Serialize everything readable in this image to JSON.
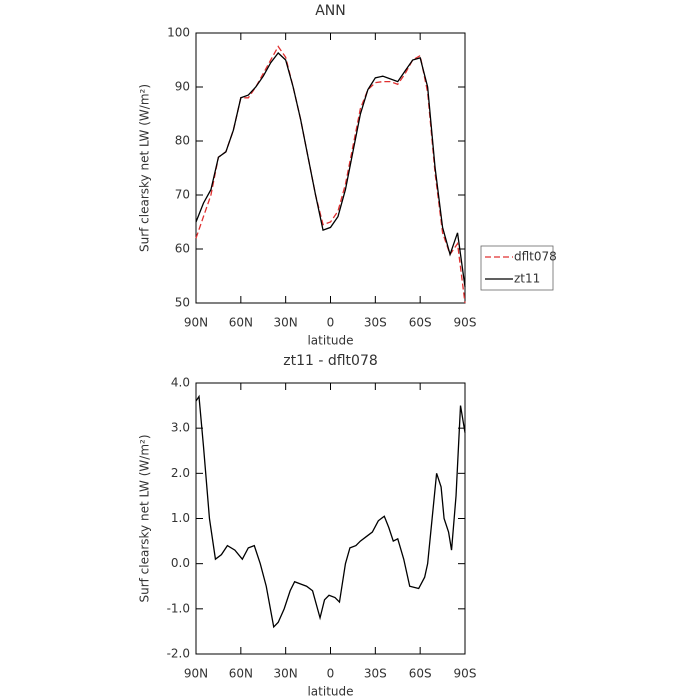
{
  "chart_data": [
    {
      "type": "line",
      "title": "ANN",
      "ylabel": "Surf clearsky net LW (W/m²)",
      "xlabel": "latitude",
      "x": [
        90,
        85,
        80,
        75,
        70,
        65,
        60,
        55,
        50,
        45,
        40,
        35,
        30,
        25,
        20,
        15,
        10,
        5,
        0,
        -5,
        -10,
        -15,
        -20,
        -25,
        -30,
        -35,
        -40,
        -45,
        -50,
        -55,
        -60,
        -65,
        -70,
        -75,
        -80,
        -85,
        -90
      ],
      "series": [
        {
          "name": "dflt078",
          "color": "#e03030",
          "dash": true,
          "values": [
            62,
            66,
            70,
            77,
            78,
            82,
            88,
            88,
            90,
            92.5,
            95,
            97.5,
            95.5,
            90,
            84,
            77,
            70,
            64.5,
            65,
            67,
            72,
            79,
            86,
            89.5,
            90.8,
            91,
            91,
            90.5,
            92.5,
            95,
            95.8,
            89,
            74,
            63,
            59,
            61,
            50
          ]
        },
        {
          "name": "zt11",
          "color": "#000000",
          "dash": false,
          "values": [
            65,
            68.5,
            71,
            77,
            78,
            82,
            88,
            88.5,
            90,
            92,
            94.5,
            96.3,
            95,
            90,
            84,
            77,
            70,
            63.5,
            64,
            66,
            71,
            78,
            85,
            89.5,
            91.7,
            92,
            91.5,
            91,
            93,
            95,
            95.4,
            90,
            75,
            64,
            59,
            63,
            53
          ]
        }
      ],
      "xlim": [
        90,
        -90
      ],
      "xticks": [
        {
          "value": 90,
          "label": "90N"
        },
        {
          "value": 60,
          "label": "60N"
        },
        {
          "value": 30,
          "label": "30N"
        },
        0,
        {
          "value": -30,
          "label": "30S"
        },
        {
          "value": -60,
          "label": "60S"
        },
        {
          "value": -90,
          "label": "90S"
        }
      ],
      "ylim": [
        50,
        100
      ],
      "yticks": [
        50,
        60,
        70,
        80,
        90,
        100
      ],
      "legend": "right"
    },
    {
      "type": "line",
      "title": "zt11 - dflt078",
      "ylabel": "Surf clearsky net LW (W/m²)",
      "xlabel": "latitude",
      "x": [
        90,
        88,
        85,
        81,
        77,
        73,
        69,
        64,
        59,
        55,
        51,
        47,
        43,
        38,
        35,
        31,
        27,
        24,
        20,
        16,
        12,
        7,
        4,
        1,
        -3,
        -6,
        -10,
        -13,
        -17,
        -20,
        -24,
        -28,
        -32,
        -36,
        -39,
        -42,
        -45,
        -49,
        -53,
        -59,
        -63,
        -65,
        -68,
        -71,
        -74,
        -76,
        -79,
        -81,
        -84,
        -87,
        -90
      ],
      "series": [
        {
          "name": "zt11 - dflt078",
          "color": "#000000",
          "dash": false,
          "values": [
            3.6,
            3.7,
            2.6,
            1.0,
            0.1,
            0.2,
            0.4,
            0.3,
            0.1,
            0.35,
            0.4,
            0.0,
            -0.5,
            -1.4,
            -1.3,
            -1.0,
            -0.6,
            -0.4,
            -0.45,
            -0.5,
            -0.6,
            -1.2,
            -0.8,
            -0.7,
            -0.75,
            -0.85,
            0.0,
            0.35,
            0.4,
            0.5,
            0.6,
            0.7,
            0.95,
            1.05,
            0.8,
            0.5,
            0.55,
            0.1,
            -0.5,
            -0.55,
            -0.3,
            0.0,
            1.0,
            2.0,
            1.7,
            1.0,
            0.7,
            0.3,
            1.5,
            3.5,
            2.9
          ]
        }
      ],
      "xlim": [
        90,
        -90
      ],
      "xticks": [
        {
          "value": 90,
          "label": "90N"
        },
        {
          "value": 60,
          "label": "60N"
        },
        {
          "value": 30,
          "label": "30N"
        },
        0,
        {
          "value": -30,
          "label": "30S"
        },
        {
          "value": -60,
          "label": "60S"
        },
        {
          "value": -90,
          "label": "90S"
        }
      ],
      "ylim": [
        -2,
        4
      ],
      "yticks": [
        {
          "value": -2,
          "label": "-2.0"
        },
        {
          "value": -1,
          "label": "-1.0"
        },
        {
          "value": 0,
          "label": "0.0"
        },
        {
          "value": 1,
          "label": "1.0"
        },
        {
          "value": 2,
          "label": "2.0"
        },
        {
          "value": 3,
          "label": "3.0"
        },
        {
          "value": 4,
          "label": "4.0"
        }
      ]
    }
  ]
}
